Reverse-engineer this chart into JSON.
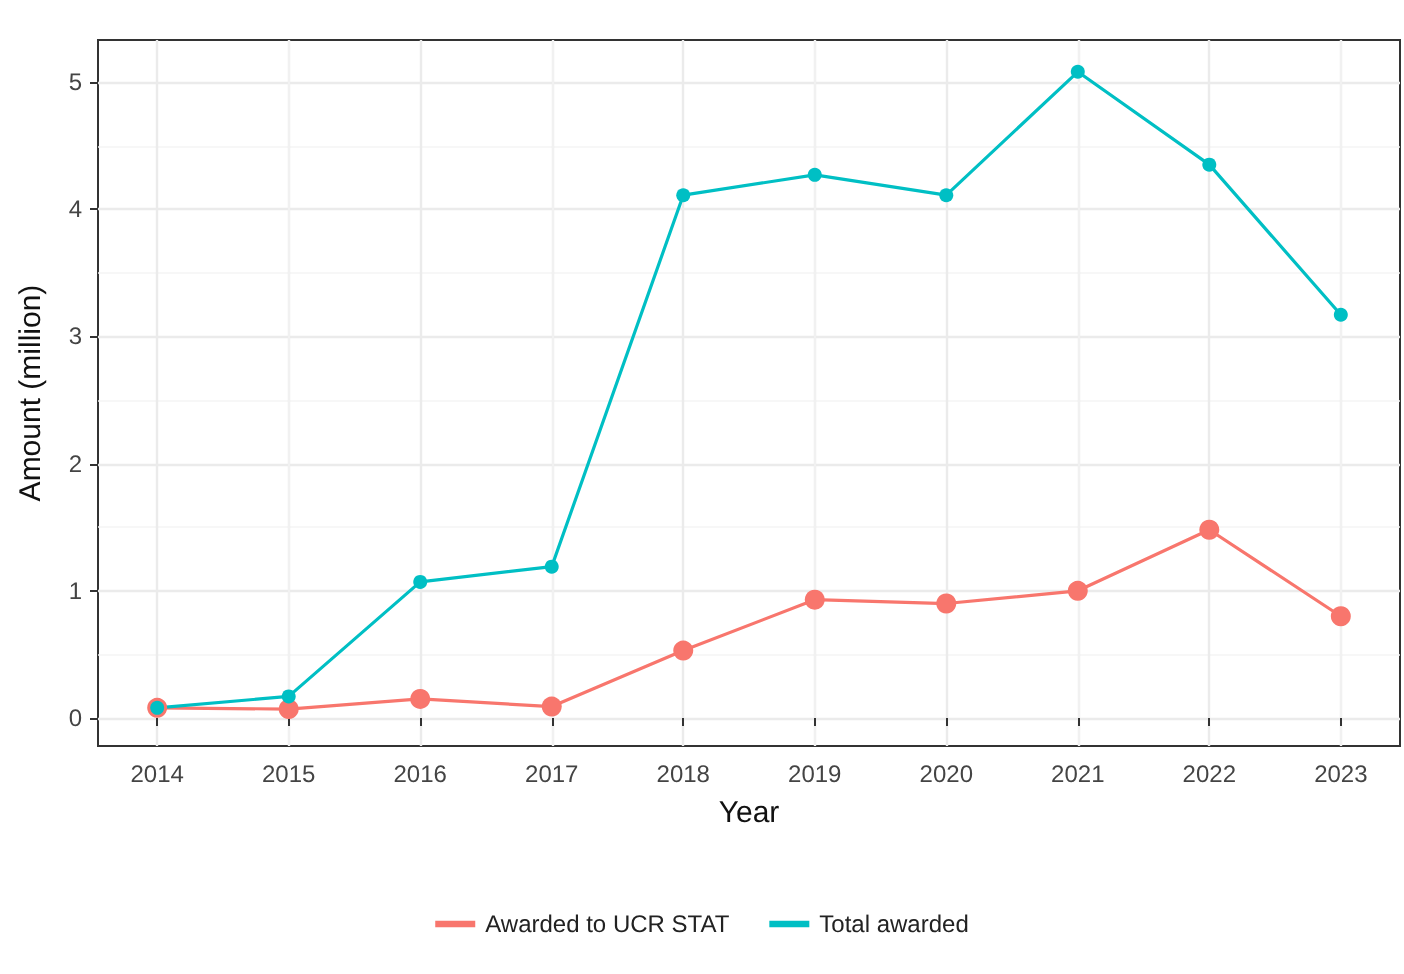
{
  "chart_data": {
    "type": "line",
    "xlabel": "Year",
    "ylabel": "Amount (million)",
    "x": [
      2014,
      2015,
      2016,
      2017,
      2018,
      2019,
      2020,
      2021,
      2022,
      2023
    ],
    "series": [
      {
        "name": "Awarded to UCR STAT",
        "color": "#f8766d",
        "values": [
          0.08,
          0.07,
          0.15,
          0.09,
          0.53,
          0.93,
          0.9,
          1.0,
          1.48,
          0.8
        ]
      },
      {
        "name": "Total awarded",
        "color": "#00bfc4",
        "values": [
          0.08,
          0.17,
          1.07,
          1.19,
          4.11,
          4.27,
          4.11,
          5.08,
          4.35,
          3.17
        ]
      }
    ],
    "xlim": [
      2013.55,
      2023.45
    ],
    "xticks": [
      2014,
      2015,
      2016,
      2017,
      2018,
      2019,
      2020,
      2021,
      2022,
      2023
    ],
    "ylim": [
      -0.22,
      5.33
    ],
    "yticks": [
      0,
      1,
      2,
      3,
      4,
      5
    ],
    "grid": true,
    "legend": "bottom",
    "marker": "circle",
    "line_style": "solid"
  }
}
